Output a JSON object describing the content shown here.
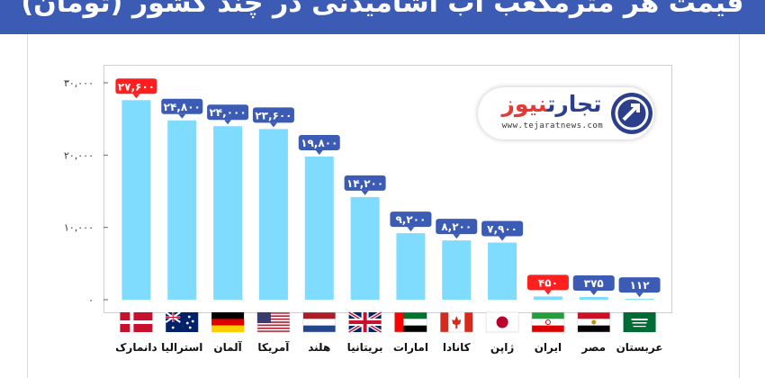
{
  "header": {
    "title": "قیمت هر مترمکعب آب آشامیدنی در چند کشور (تومان)"
  },
  "logo": {
    "name_part1": "تجارت",
    "name_part2": "نیوز",
    "url": "www.tejaratnews.com"
  },
  "colors": {
    "bar": "#7fdcff",
    "label_default": "#3b5bb5",
    "label_highlight": "#ff1f1f",
    "header": "#3b5bb5"
  },
  "chart_data": {
    "type": "bar",
    "title": "",
    "xlabel": "",
    "ylabel": "",
    "ylim": [
      0,
      30000
    ],
    "yticks": [
      0,
      10000,
      20000,
      30000
    ],
    "ytick_labels": [
      "۰",
      "۱۰,۰۰۰",
      "۲۰,۰۰۰",
      "۳۰,۰۰۰"
    ],
    "grid": false,
    "categories": [
      "دانمارک",
      "استرالیا",
      "آلمان",
      "آمریکا",
      "هلند",
      "بریتانیا",
      "امارات",
      "کانادا",
      "ژاپن",
      "ایران",
      "مصر",
      "عربستان"
    ],
    "values": [
      27600,
      24800,
      24000,
      23600,
      19800,
      14200,
      9200,
      8200,
      7900,
      450,
      375,
      112
    ],
    "value_labels": [
      "۲۷,۶۰۰",
      "۲۴,۸۰۰",
      "۲۴,۰۰۰",
      "۲۳,۶۰۰",
      "۱۹,۸۰۰",
      "۱۴,۲۰۰",
      "۹,۲۰۰",
      "۸,۲۰۰",
      "۷,۹۰۰",
      "۴۵۰",
      "۳۷۵",
      "۱۱۲"
    ],
    "highlighted": [
      "دانمارک",
      "ایران"
    ],
    "flags": [
      "denmark-flag",
      "australia-flag",
      "germany-flag",
      "usa-flag",
      "netherlands-flag",
      "uk-flag",
      "uae-flag",
      "canada-flag",
      "japan-flag",
      "iran-flag",
      "egypt-flag",
      "saudi-flag"
    ]
  }
}
